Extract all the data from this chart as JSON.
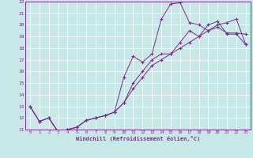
{
  "xlabel": "Windchill (Refroidissement éolien,°C)",
  "bg_color": "#c8e8e8",
  "grid_color": "#ffffff",
  "line_color": "#7b2d8b",
  "xlim": [
    -0.5,
    23.5
  ],
  "ylim": [
    11,
    22
  ],
  "xticks": [
    0,
    1,
    2,
    3,
    4,
    5,
    6,
    7,
    8,
    9,
    10,
    11,
    12,
    13,
    14,
    15,
    16,
    17,
    18,
    19,
    20,
    21,
    22,
    23
  ],
  "yticks": [
    11,
    12,
    13,
    14,
    15,
    16,
    17,
    18,
    19,
    20,
    21,
    22
  ],
  "line1_x": [
    0,
    1,
    2,
    3,
    4,
    5,
    6,
    7,
    8,
    9,
    10,
    11,
    12,
    13,
    14,
    15,
    16,
    17,
    18,
    19,
    20,
    21,
    22,
    23
  ],
  "line1_y": [
    13,
    11.7,
    12.0,
    10.8,
    11.0,
    11.2,
    11.8,
    12.0,
    12.2,
    12.5,
    13.3,
    14.5,
    15.5,
    16.5,
    17.0,
    17.5,
    18.0,
    18.5,
    19.0,
    19.5,
    20.0,
    20.2,
    20.5,
    18.3
  ],
  "line2_x": [
    0,
    1,
    2,
    3,
    4,
    5,
    6,
    7,
    8,
    9,
    10,
    11,
    12,
    13,
    14,
    15,
    16,
    17,
    18,
    19,
    20,
    21,
    22,
    23
  ],
  "line2_y": [
    13,
    11.7,
    12.0,
    10.8,
    11.0,
    11.2,
    11.8,
    12.0,
    12.2,
    12.5,
    15.5,
    17.3,
    16.8,
    17.5,
    20.5,
    21.8,
    21.9,
    20.2,
    20.0,
    19.5,
    19.8,
    19.3,
    19.3,
    19.2
  ],
  "line3_x": [
    0,
    1,
    2,
    3,
    4,
    5,
    6,
    7,
    8,
    9,
    10,
    11,
    12,
    13,
    14,
    15,
    16,
    17,
    18,
    19,
    20,
    21,
    22,
    23
  ],
  "line3_y": [
    13,
    11.7,
    12.0,
    10.8,
    11.0,
    11.2,
    11.8,
    12.0,
    12.2,
    12.5,
    13.3,
    15.0,
    16.0,
    17.0,
    17.5,
    17.5,
    18.5,
    19.5,
    19.0,
    20.0,
    20.3,
    19.2,
    19.2,
    18.3
  ]
}
